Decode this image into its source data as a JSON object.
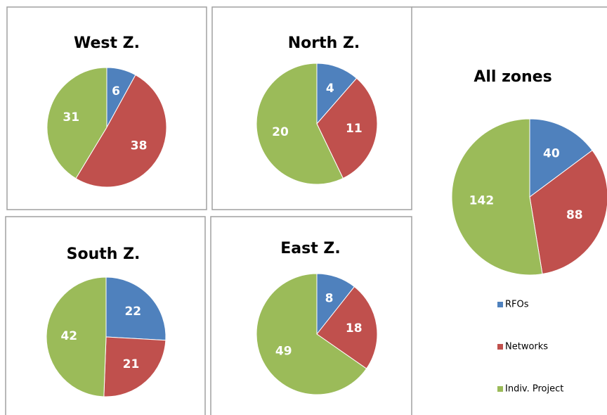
{
  "chart_data": [
    {
      "type": "pie",
      "title": "West Z.",
      "values": [
        6,
        38,
        31
      ],
      "colors": [
        "#4f81bd",
        "#c0504d",
        "#9bbb59"
      ]
    },
    {
      "type": "pie",
      "title": "North Z.",
      "values": [
        4,
        11,
        20
      ],
      "colors": [
        "#4f81bd",
        "#c0504d",
        "#9bbb59"
      ]
    },
    {
      "type": "pie",
      "title": "South Z.",
      "values": [
        22,
        21,
        42
      ],
      "colors": [
        "#4f81bd",
        "#c0504d",
        "#9bbb59"
      ]
    },
    {
      "type": "pie",
      "title": "East Z.",
      "values": [
        8,
        18,
        49
      ],
      "colors": [
        "#4f81bd",
        "#c0504d",
        "#9bbb59"
      ]
    },
    {
      "type": "pie",
      "title": "All zones",
      "categories": [
        "RFOs",
        "Networks",
        "Indiv. Project"
      ],
      "values": [
        40,
        88,
        142
      ],
      "colors": [
        "#4f81bd",
        "#c0504d",
        "#9bbb59"
      ],
      "legend": "bottom"
    }
  ]
}
